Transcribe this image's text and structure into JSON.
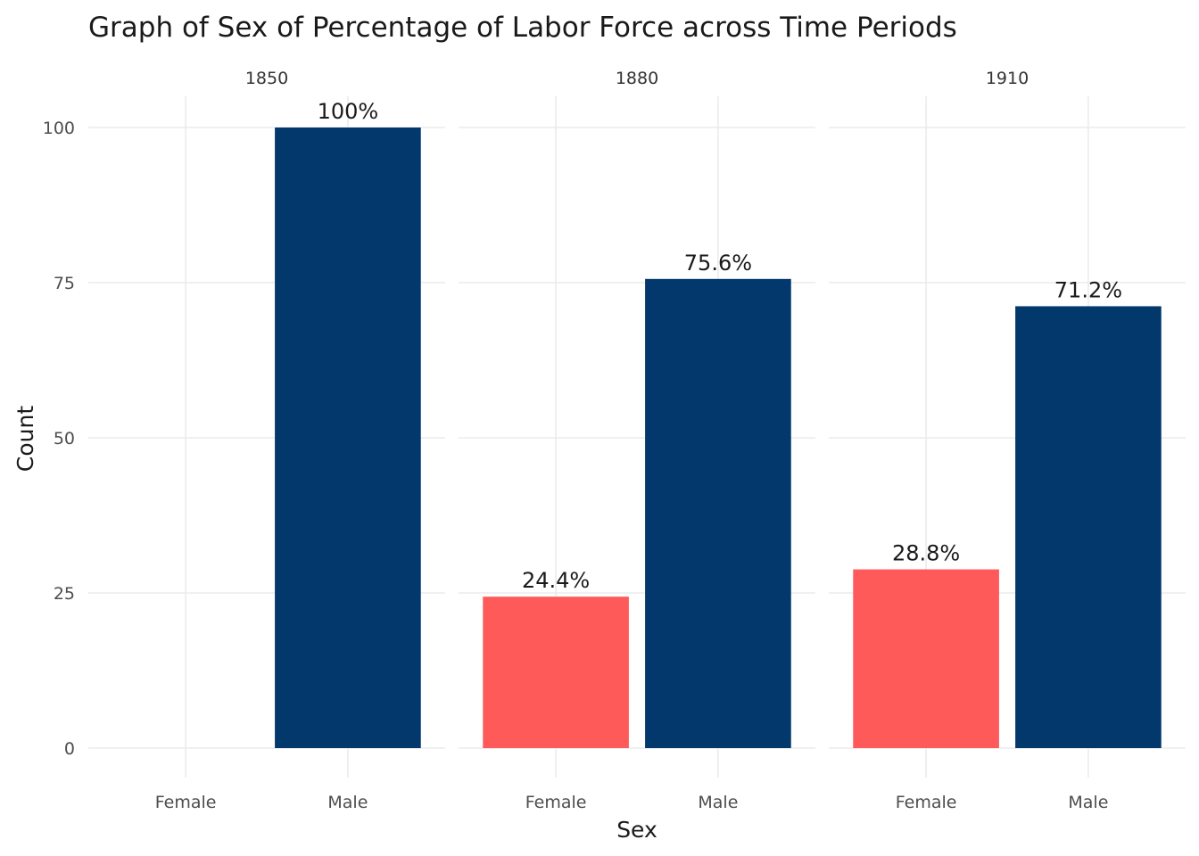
{
  "chart_data": {
    "type": "bar",
    "title": "Graph of Sex of Percentage of Labor Force across Time Periods",
    "xlabel": "Sex",
    "ylabel": "Count",
    "ylim": [
      0,
      100
    ],
    "yticks": [
      "0",
      "25",
      "50",
      "75",
      "100"
    ],
    "categories": [
      "Female",
      "Male"
    ],
    "grid": true,
    "legend": "none",
    "colors": {
      "Female": "#ff5a5a",
      "Male": "#02386b"
    },
    "panels": [
      {
        "name": "1850",
        "values": [
          0,
          100
        ],
        "labels": [
          "",
          "100%"
        ]
      },
      {
        "name": "1880",
        "values": [
          24.4,
          75.6
        ],
        "labels": [
          "24.4%",
          "75.6%"
        ]
      },
      {
        "name": "1910",
        "values": [
          28.8,
          71.2
        ],
        "labels": [
          "28.8%",
          "71.2%"
        ]
      }
    ]
  }
}
